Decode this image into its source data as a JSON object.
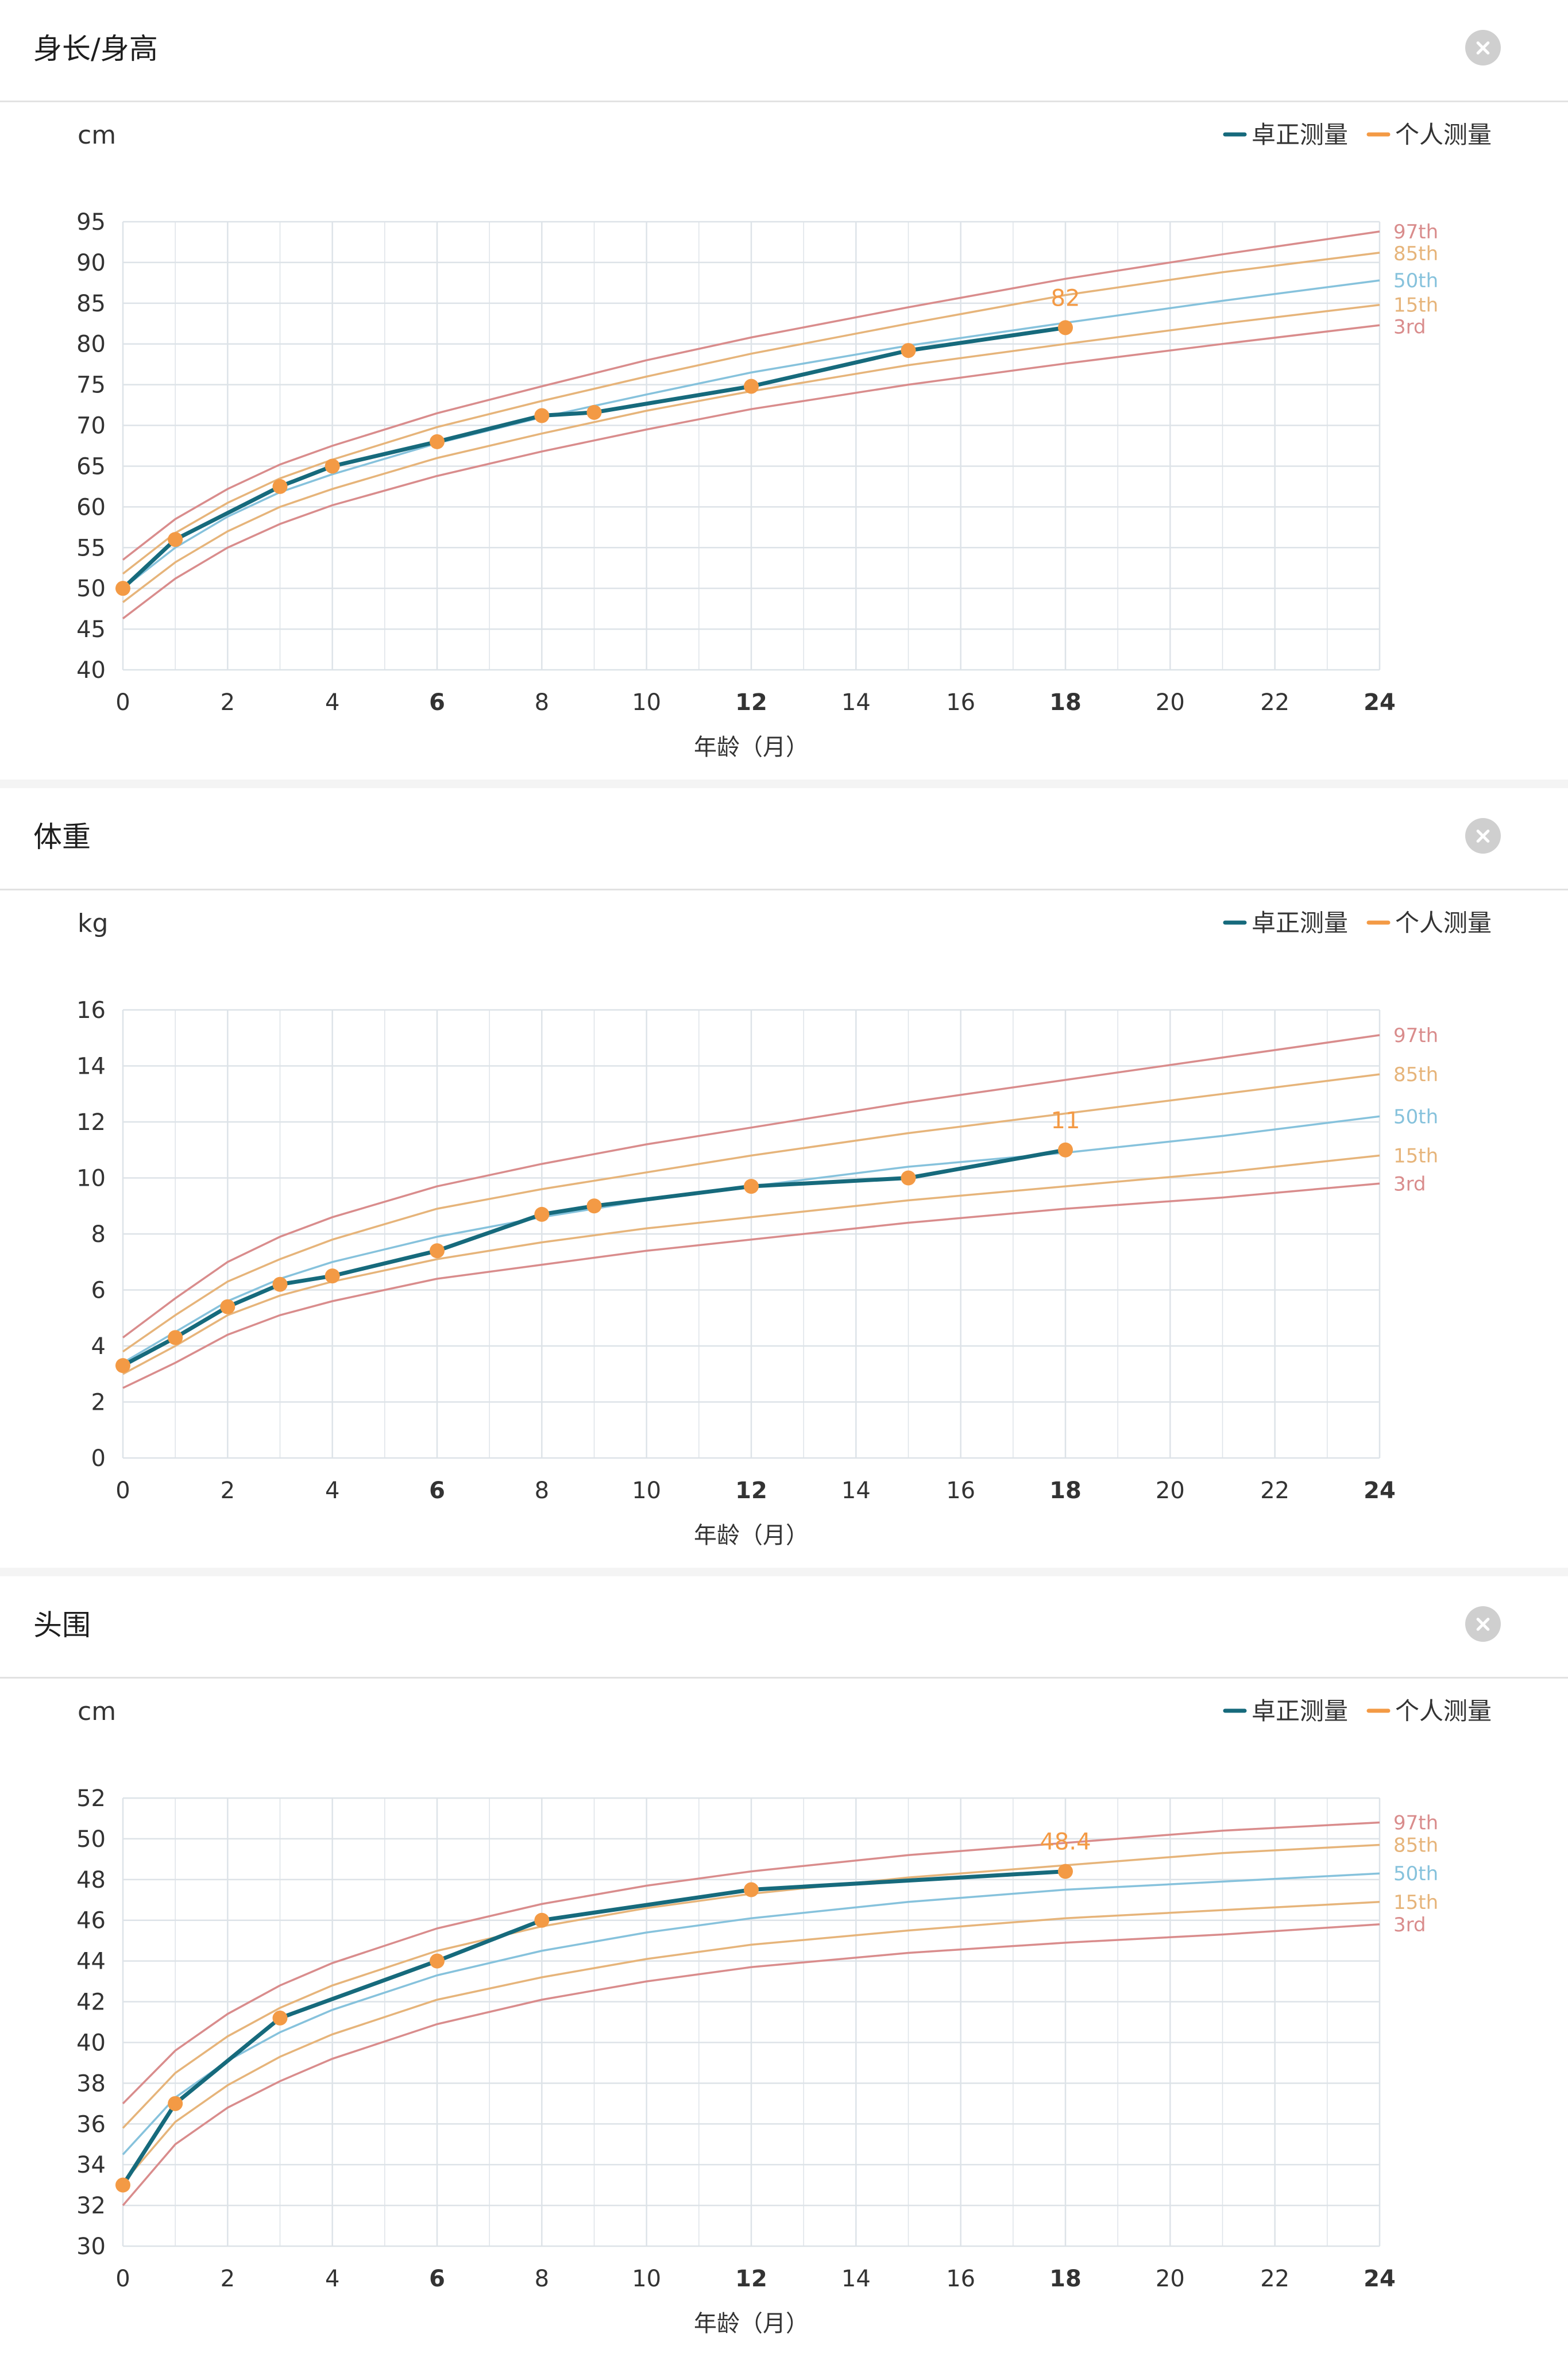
{
  "legend": [
    {
      "label": "卓正测量",
      "color": "#166a7c"
    },
    {
      "label": "个人测量",
      "color": "#f39a45"
    }
  ],
  "close_icon": "close-icon",
  "colors": {
    "measured_line": "#166a7c",
    "point": "#f39a45",
    "p97": "#d98c8c",
    "p85": "#e6b47a",
    "p50": "#86c2dc",
    "p15": "#e6b47a",
    "p3": "#d98c8c",
    "grid": "#dde3e8"
  },
  "chart_data": [
    {
      "type": "line",
      "title": "身长/身高",
      "ylabel": "cm",
      "xlabel": "年龄（月）",
      "xlim": [
        0,
        24
      ],
      "ylim": [
        40,
        95
      ],
      "x_ticks": [
        0,
        2,
        4,
        6,
        8,
        10,
        12,
        14,
        16,
        18,
        20,
        22,
        24
      ],
      "x_ticks_bold": [
        6,
        12,
        18,
        24
      ],
      "y_ticks": [
        40,
        45,
        50,
        55,
        60,
        65,
        70,
        75,
        80,
        85,
        90,
        95
      ],
      "grid": true,
      "legend_position": "top-right",
      "percentiles": [
        {
          "name": "97th",
          "x": [
            0,
            1,
            2,
            3,
            4,
            6,
            8,
            10,
            12,
            15,
            18,
            21,
            24
          ],
          "values": [
            53.5,
            58.5,
            62.2,
            65.2,
            67.5,
            71.5,
            74.8,
            78,
            80.8,
            84.5,
            88,
            91,
            93.8
          ]
        },
        {
          "name": "85th",
          "x": [
            0,
            1,
            2,
            3,
            4,
            6,
            8,
            10,
            12,
            15,
            18,
            21,
            24
          ],
          "values": [
            51.8,
            56.8,
            60.5,
            63.5,
            65.8,
            69.8,
            73,
            76,
            78.8,
            82.5,
            86,
            88.8,
            91.2
          ]
        },
        {
          "name": "50th",
          "x": [
            0,
            1,
            2,
            3,
            4,
            6,
            8,
            10,
            12,
            15,
            18,
            21,
            24
          ],
          "values": [
            50,
            55,
            58.8,
            61.8,
            64,
            67.8,
            71,
            73.8,
            76.5,
            79.8,
            82.6,
            85.3,
            87.8
          ]
        },
        {
          "name": "15th",
          "x": [
            0,
            1,
            2,
            3,
            4,
            6,
            8,
            10,
            12,
            15,
            18,
            21,
            24
          ],
          "values": [
            48.3,
            53.2,
            57,
            60,
            62.2,
            66,
            69,
            71.8,
            74.2,
            77.4,
            80,
            82.5,
            84.8
          ]
        },
        {
          "name": "3rd",
          "x": [
            0,
            1,
            2,
            3,
            4,
            6,
            8,
            10,
            12,
            15,
            18,
            21,
            24
          ],
          "values": [
            46.3,
            51.2,
            55,
            57.9,
            60.2,
            63.8,
            66.8,
            69.5,
            72,
            75,
            77.6,
            80,
            82.3
          ]
        }
      ],
      "measurements": {
        "x": [
          0,
          1,
          3,
          4,
          6,
          8,
          9,
          12,
          15,
          18
        ],
        "values": [
          50,
          56,
          62.5,
          65,
          68,
          71.2,
          71.6,
          74.8,
          79.2,
          82
        ]
      },
      "annotation": {
        "x": 18,
        "value": 82,
        "text": "82"
      }
    },
    {
      "type": "line",
      "title": "体重",
      "ylabel": "kg",
      "xlabel": "年龄（月）",
      "xlim": [
        0,
        24
      ],
      "ylim": [
        0,
        16
      ],
      "x_ticks": [
        0,
        2,
        4,
        6,
        8,
        10,
        12,
        14,
        16,
        18,
        20,
        22,
        24
      ],
      "x_ticks_bold": [
        6,
        12,
        18,
        24
      ],
      "y_ticks": [
        0,
        2,
        4,
        6,
        8,
        10,
        12,
        14,
        16
      ],
      "grid": true,
      "legend_position": "top-right",
      "percentiles": [
        {
          "name": "97th",
          "x": [
            0,
            1,
            2,
            3,
            4,
            6,
            8,
            10,
            12,
            15,
            18,
            21,
            24
          ],
          "values": [
            4.3,
            5.7,
            7,
            7.9,
            8.6,
            9.7,
            10.5,
            11.2,
            11.8,
            12.7,
            13.5,
            14.3,
            15.1
          ]
        },
        {
          "name": "85th",
          "x": [
            0,
            1,
            2,
            3,
            4,
            6,
            8,
            10,
            12,
            15,
            18,
            21,
            24
          ],
          "values": [
            3.8,
            5.1,
            6.3,
            7.1,
            7.8,
            8.9,
            9.6,
            10.2,
            10.8,
            11.6,
            12.3,
            13,
            13.7
          ]
        },
        {
          "name": "50th",
          "x": [
            0,
            1,
            2,
            3,
            4,
            6,
            8,
            10,
            12,
            15,
            18,
            21,
            24
          ],
          "values": [
            3.4,
            4.5,
            5.6,
            6.4,
            7,
            7.9,
            8.6,
            9.2,
            9.7,
            10.4,
            10.9,
            11.5,
            12.2
          ]
        },
        {
          "name": "15th",
          "x": [
            0,
            1,
            2,
            3,
            4,
            6,
            8,
            10,
            12,
            15,
            18,
            21,
            24
          ],
          "values": [
            3,
            4,
            5.1,
            5.8,
            6.3,
            7.1,
            7.7,
            8.2,
            8.6,
            9.2,
            9.7,
            10.2,
            10.8
          ]
        },
        {
          "name": "3rd",
          "x": [
            0,
            1,
            2,
            3,
            4,
            6,
            8,
            10,
            12,
            15,
            18,
            21,
            24
          ],
          "values": [
            2.5,
            3.4,
            4.4,
            5.1,
            5.6,
            6.4,
            6.9,
            7.4,
            7.8,
            8.4,
            8.9,
            9.3,
            9.8
          ]
        }
      ],
      "measurements": {
        "x": [
          0,
          1,
          2,
          3,
          4,
          6,
          8,
          9,
          12,
          15,
          18
        ],
        "values": [
          3.3,
          4.3,
          5.4,
          6.2,
          6.5,
          7.4,
          8.7,
          9,
          9.7,
          10,
          11
        ]
      },
      "annotation": {
        "x": 18,
        "value": 11,
        "text": "11"
      }
    },
    {
      "type": "line",
      "title": "头围",
      "ylabel": "cm",
      "xlabel": "年龄（月）",
      "xlim": [
        0,
        24
      ],
      "ylim": [
        30,
        52
      ],
      "x_ticks": [
        0,
        2,
        4,
        6,
        8,
        10,
        12,
        14,
        16,
        18,
        20,
        22,
        24
      ],
      "x_ticks_bold": [
        6,
        12,
        18,
        24
      ],
      "y_ticks": [
        30,
        32,
        34,
        36,
        38,
        40,
        42,
        44,
        46,
        48,
        50,
        52
      ],
      "grid": true,
      "legend_position": "top-right",
      "percentiles": [
        {
          "name": "97th",
          "x": [
            0,
            1,
            2,
            3,
            4,
            6,
            8,
            10,
            12,
            15,
            18,
            21,
            24
          ],
          "values": [
            37,
            39.6,
            41.4,
            42.8,
            43.9,
            45.6,
            46.8,
            47.7,
            48.4,
            49.2,
            49.8,
            50.4,
            50.8
          ]
        },
        {
          "name": "85th",
          "x": [
            0,
            1,
            2,
            3,
            4,
            6,
            8,
            10,
            12,
            15,
            18,
            21,
            24
          ],
          "values": [
            35.8,
            38.5,
            40.3,
            41.7,
            42.8,
            44.5,
            45.7,
            46.6,
            47.3,
            48.1,
            48.7,
            49.3,
            49.7
          ]
        },
        {
          "name": "50th",
          "x": [
            0,
            1,
            2,
            3,
            4,
            6,
            8,
            10,
            12,
            15,
            18,
            21,
            24
          ],
          "values": [
            34.5,
            37.3,
            39.1,
            40.5,
            41.6,
            43.3,
            44.5,
            45.4,
            46.1,
            46.9,
            47.5,
            47.9,
            48.3
          ]
        },
        {
          "name": "15th",
          "x": [
            0,
            1,
            2,
            3,
            4,
            6,
            8,
            10,
            12,
            15,
            18,
            21,
            24
          ],
          "values": [
            33.1,
            36.1,
            37.9,
            39.3,
            40.4,
            42.1,
            43.2,
            44.1,
            44.8,
            45.5,
            46.1,
            46.5,
            46.9
          ]
        },
        {
          "name": "3rd",
          "x": [
            0,
            1,
            2,
            3,
            4,
            6,
            8,
            10,
            12,
            15,
            18,
            21,
            24
          ],
          "values": [
            32,
            35,
            36.8,
            38.1,
            39.2,
            40.9,
            42.1,
            43,
            43.7,
            44.4,
            44.9,
            45.3,
            45.8
          ]
        }
      ],
      "measurements": {
        "x": [
          0,
          1,
          3,
          6,
          8,
          12,
          18
        ],
        "values": [
          33,
          37,
          41.2,
          44,
          46,
          47.5,
          48.4
        ]
      },
      "annotation": {
        "x": 18,
        "value": 48.4,
        "text": "48.4"
      }
    }
  ]
}
